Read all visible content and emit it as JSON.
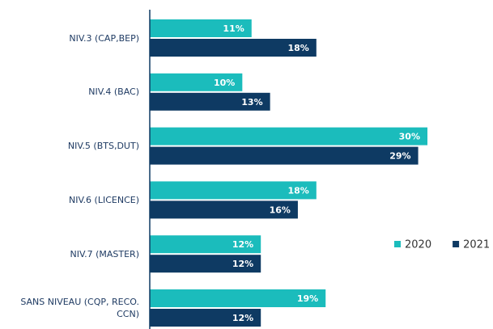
{
  "chart_data": {
    "type": "bar",
    "orientation": "horizontal",
    "categories": [
      "NIV.3 (CAP,BEP)",
      "NIV.4 (BAC)",
      "NIV.5 (BTS,DUT)",
      "NIV.6 (LICENCE)",
      "NIV.7 (MASTER)",
      "SANS NIVEAU (CQP, RECO. CCN)"
    ],
    "series": [
      {
        "name": "2020",
        "color": "#1bbcbc",
        "values": [
          11,
          10,
          30,
          18,
          12,
          19
        ],
        "value_labels": [
          "11%",
          "10%",
          "30%",
          "18%",
          "12%",
          "19%"
        ]
      },
      {
        "name": "2021",
        "color": "#0e3a63",
        "values": [
          18,
          13,
          29,
          16,
          12,
          12
        ],
        "value_labels": [
          "18%",
          "13%",
          "29%",
          "16%",
          "12%",
          "12%"
        ]
      }
    ],
    "legend": "right"
  }
}
